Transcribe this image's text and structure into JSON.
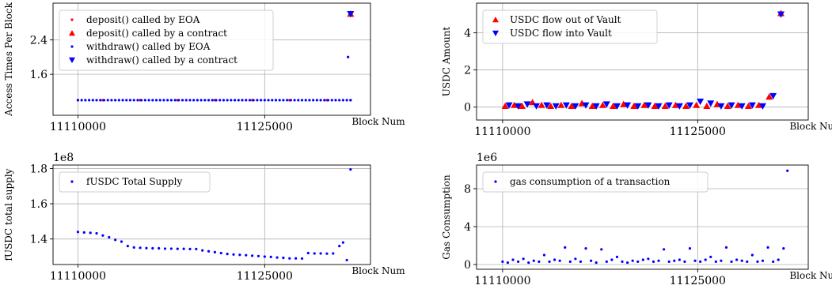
{
  "chart_data": [
    {
      "type": "scatter",
      "ylabel": "Access Times Per Block",
      "xlabel": "Block Num",
      "xlim": [
        11108000,
        11133500
      ],
      "ylim": [
        0.65,
        3.25
      ],
      "xticks": [
        11110000,
        11125000
      ],
      "xtick_labels": [
        "11110000",
        "11125000"
      ],
      "yticks": [
        1.6,
        2.4
      ],
      "ytick_labels": [
        "1.6",
        "2.4"
      ],
      "grid": true,
      "legend_position": "upper-left",
      "series": [
        {
          "name": "deposit() called by EOA",
          "color": "#ff0000",
          "marker": "dot",
          "x": [
            11110000,
            11112000,
            11115000,
            11118000,
            11121000,
            11124000,
            11127000,
            11130000,
            11131900
          ],
          "y": [
            1,
            1,
            1,
            1,
            1,
            1,
            1,
            1,
            1
          ]
        },
        {
          "name": "deposit() called by a contract",
          "color": "#ff0000",
          "marker": "triangle-up",
          "x": [
            11131900
          ],
          "y": [
            3
          ]
        },
        {
          "name": "withdraw() called by EOA",
          "color": "#0000ff",
          "marker": "dot",
          "x": [
            11110000,
            11110300,
            11110600,
            11110900,
            11111200,
            11111500,
            11111800,
            11112100,
            11112400,
            11112700,
            11113000,
            11113300,
            11113600,
            11113900,
            11114200,
            11114500,
            11114800,
            11115100,
            11115400,
            11115700,
            11116000,
            11116300,
            11116600,
            11116900,
            11117200,
            11117500,
            11117800,
            11118100,
            11118400,
            11118700,
            11119000,
            11119300,
            11119600,
            11119900,
            11120200,
            11120500,
            11120800,
            11121100,
            11121400,
            11121700,
            11122000,
            11122300,
            11122600,
            11122900,
            11123200,
            11123500,
            11123800,
            11124100,
            11124400,
            11124700,
            11125000,
            11125300,
            11125600,
            11125900,
            11126200,
            11126500,
            11126800,
            11127100,
            11127400,
            11127700,
            11128000,
            11128300,
            11128600,
            11128900,
            11129200,
            11129500,
            11129800,
            11130100,
            11130400,
            11130700,
            11131000,
            11131300,
            11131600,
            11131900,
            11131700
          ],
          "y": [
            1,
            1,
            1,
            1,
            1,
            1,
            1,
            1,
            1,
            1,
            1,
            1,
            1,
            1,
            1,
            1,
            1,
            1,
            1,
            1,
            1,
            1,
            1,
            1,
            1,
            1,
            1,
            1,
            1,
            1,
            1,
            1,
            1,
            1,
            1,
            1,
            1,
            1,
            1,
            1,
            1,
            1,
            1,
            1,
            1,
            1,
            1,
            1,
            1,
            1,
            1,
            1,
            1,
            1,
            1,
            1,
            1,
            1,
            1,
            1,
            1,
            1,
            1,
            1,
            1,
            1,
            1,
            1,
            1,
            1,
            1,
            1,
            1,
            1,
            2
          ]
        },
        {
          "name": "withdraw() called by a contract",
          "color": "#0000ff",
          "marker": "triangle-down",
          "x": [
            11131900
          ],
          "y": [
            3
          ]
        }
      ]
    },
    {
      "type": "scatter",
      "ylabel": "USDC Amount",
      "xlabel": "Block Num",
      "exponent": "1e7",
      "xlim": [
        11108000,
        11133500
      ],
      "ylim": [
        -0.7,
        5.6
      ],
      "xticks": [
        11110000,
        11125000
      ],
      "xtick_labels": [
        "11110000",
        "11125000"
      ],
      "yticks": [
        0,
        2,
        4
      ],
      "ytick_labels": [
        "0",
        "2",
        "4"
      ],
      "grid": true,
      "legend_position": "upper-left",
      "series": [
        {
          "name": "USDC flow out of Vault",
          "color": "#ff0000",
          "marker": "triangle-up",
          "x": [
            11110200,
            11110900,
            11111500,
            11112300,
            11113000,
            11113700,
            11114500,
            11115300,
            11116100,
            11116900,
            11117700,
            11118500,
            11119300,
            11120100,
            11120900,
            11121700,
            11122500,
            11123300,
            11124100,
            11124900,
            11125700,
            11126500,
            11127300,
            11128100,
            11128900,
            11129700,
            11130500,
            11131400
          ],
          "y": [
            0.05,
            0.1,
            0.05,
            0.25,
            0.1,
            0.05,
            0.1,
            0.05,
            0.2,
            0.05,
            0.1,
            0.05,
            0.15,
            0.05,
            0.1,
            0.05,
            0.05,
            0.1,
            0.05,
            0.1,
            0.05,
            0.15,
            0.05,
            0.1,
            0.05,
            0.1,
            0.55,
            5.05
          ]
        },
        {
          "name": "USDC flow into Vault",
          "color": "#0000ff",
          "marker": "triangle-down",
          "x": [
            11110500,
            11111200,
            11111900,
            11112600,
            11113400,
            11114100,
            11114900,
            11115600,
            11116400,
            11117200,
            11118000,
            11118800,
            11119600,
            11120400,
            11121200,
            11122000,
            11122800,
            11123600,
            11124400,
            11125200,
            11126000,
            11126800,
            11127600,
            11128400,
            11129200,
            11130000,
            11130800,
            11131400
          ],
          "y": [
            0.1,
            0.05,
            0.15,
            0.05,
            0.1,
            0.05,
            0.1,
            0.05,
            0.1,
            0.05,
            0.15,
            0.05,
            0.1,
            0.05,
            0.1,
            0.05,
            0.1,
            0.05,
            0.1,
            0.3,
            0.2,
            0.05,
            0.1,
            0.05,
            0.1,
            0.05,
            0.6,
            5.0
          ]
        }
      ]
    },
    {
      "type": "scatter",
      "ylabel": "fUSDC total supply",
      "xlabel": "Block Num",
      "exponent": "1e8",
      "xlim": [
        11108000,
        11133500
      ],
      "ylim": [
        1.255,
        1.82
      ],
      "xticks": [
        11110000,
        11125000
      ],
      "xtick_labels": [
        "11110000",
        "11125000"
      ],
      "yticks": [
        1.4,
        1.6,
        1.8
      ],
      "ytick_labels": [
        "1.4",
        "1.6",
        "1.8"
      ],
      "grid": true,
      "legend_position": "upper-left",
      "series": [
        {
          "name": "fUSDC Total Supply",
          "color": "#0000ff",
          "marker": "dot",
          "x": [
            11110000,
            11110500,
            11111000,
            11111500,
            11112000,
            11112500,
            11113000,
            11113500,
            11114000,
            11114500,
            11115000,
            11115500,
            11116000,
            11116500,
            11117000,
            11117500,
            11118000,
            11118500,
            11119000,
            11119500,
            11120000,
            11120500,
            11121000,
            11121500,
            11122000,
            11122500,
            11123000,
            11123500,
            11124000,
            11124500,
            11125000,
            11125500,
            11126000,
            11126500,
            11127000,
            11127500,
            11128000,
            11128500,
            11129000,
            11129500,
            11130000,
            11130500,
            11131000,
            11131300,
            11131600,
            11131900
          ],
          "y": [
            1.44,
            1.437,
            1.435,
            1.432,
            1.42,
            1.41,
            1.395,
            1.385,
            1.36,
            1.352,
            1.35,
            1.348,
            1.347,
            1.347,
            1.345,
            1.345,
            1.344,
            1.344,
            1.343,
            1.343,
            1.335,
            1.33,
            1.325,
            1.32,
            1.315,
            1.312,
            1.31,
            1.308,
            1.305,
            1.303,
            1.3,
            1.298,
            1.295,
            1.293,
            1.29,
            1.29,
            1.289,
            1.32,
            1.318,
            1.318,
            1.317,
            1.318,
            1.36,
            1.38,
            1.28,
            1.795
          ]
        }
      ]
    },
    {
      "type": "scatter",
      "ylabel": "Gas Consumption",
      "xlabel": "Block Num",
      "exponent": "1e6",
      "xlim": [
        11108000,
        11133500
      ],
      "ylim": [
        -0.5,
        10.5
      ],
      "xticks": [
        11110000,
        11125000
      ],
      "xtick_labels": [
        "11110000",
        "11125000"
      ],
      "yticks": [
        0,
        4,
        8
      ],
      "ytick_labels": [
        "0",
        "4",
        "8"
      ],
      "grid": true,
      "legend_position": "upper-left",
      "series": [
        {
          "name": "gas consumption of a transaction",
          "color": "#0000ff",
          "marker": "dot",
          "x": [
            11110000,
            11110400,
            11110800,
            11111200,
            11111600,
            11112000,
            11112400,
            11112800,
            11113200,
            11113600,
            11114000,
            11114400,
            11114800,
            11115200,
            11115600,
            11116000,
            11116400,
            11116800,
            11117200,
            11117600,
            11118000,
            11118400,
            11118800,
            11119200,
            11119600,
            11120000,
            11120400,
            11120800,
            11121200,
            11121600,
            11122000,
            11122400,
            11122800,
            11123200,
            11123600,
            11124000,
            11124400,
            11124800,
            11125200,
            11125600,
            11126000,
            11126400,
            11126800,
            11127200,
            11127600,
            11128000,
            11128400,
            11128800,
            11129200,
            11129600,
            11130000,
            11130400,
            11130800,
            11131200,
            11131600,
            11131900
          ],
          "y": [
            0.3,
            0.2,
            0.5,
            0.3,
            0.6,
            0.2,
            0.4,
            0.3,
            1.0,
            0.3,
            0.5,
            0.4,
            1.8,
            0.3,
            0.6,
            0.3,
            1.7,
            0.4,
            0.2,
            1.6,
            0.3,
            0.5,
            0.8,
            0.3,
            0.2,
            0.4,
            0.3,
            0.5,
            0.6,
            0.3,
            0.4,
            1.6,
            0.3,
            0.4,
            0.5,
            0.3,
            1.7,
            0.4,
            0.3,
            0.5,
            0.8,
            0.3,
            0.4,
            1.8,
            0.3,
            0.5,
            0.4,
            0.3,
            1.0,
            0.3,
            0.4,
            1.8,
            0.3,
            0.5,
            1.7,
            9.9
          ]
        }
      ]
    }
  ]
}
